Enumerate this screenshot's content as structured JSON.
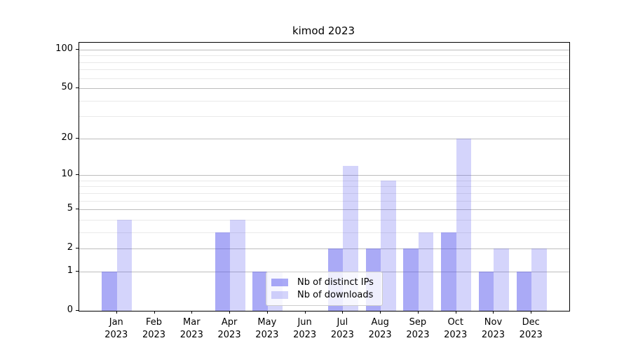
{
  "figure": {
    "title": "kimod 2023",
    "background": "#ffffff"
  },
  "chart_data": {
    "type": "bar",
    "title": "kimod 2023",
    "categories": [
      "Jan",
      "Feb",
      "Mar",
      "Apr",
      "May",
      "Jun",
      "Jul",
      "Aug",
      "Sep",
      "Oct",
      "Nov",
      "Dec"
    ],
    "category_year": "2023",
    "series": [
      {
        "name": "Nb of distinct IPs",
        "color": "rgba(85,85,238,0.5)",
        "values": [
          1,
          0,
          0,
          3,
          1,
          0,
          2,
          2,
          2,
          3,
          1,
          1
        ]
      },
      {
        "name": "Nb of downloads",
        "color": "rgba(85,85,238,0.25)",
        "values": [
          4,
          0,
          0,
          4,
          1,
          0,
          12,
          9,
          3,
          20,
          2,
          2
        ]
      }
    ],
    "xlabel": "",
    "ylabel": "",
    "yscale": "log1p",
    "ylim": [
      0,
      113
    ],
    "y_ticks": [
      0,
      1,
      2,
      5,
      10,
      20,
      50,
      100
    ],
    "y_minor_gridlines": [
      3,
      4,
      6,
      7,
      8,
      9,
      30,
      40,
      60,
      70,
      80,
      90
    ],
    "grid": true,
    "legend_position": "lower center",
    "colors": {
      "major_grid": "#bdbdbd",
      "minor_grid": "#e9e9e9",
      "spine": "#000000",
      "text": "#000000",
      "legend_border": "#cccccc",
      "legend_background": "rgba(255,255,255,0.8)"
    }
  }
}
